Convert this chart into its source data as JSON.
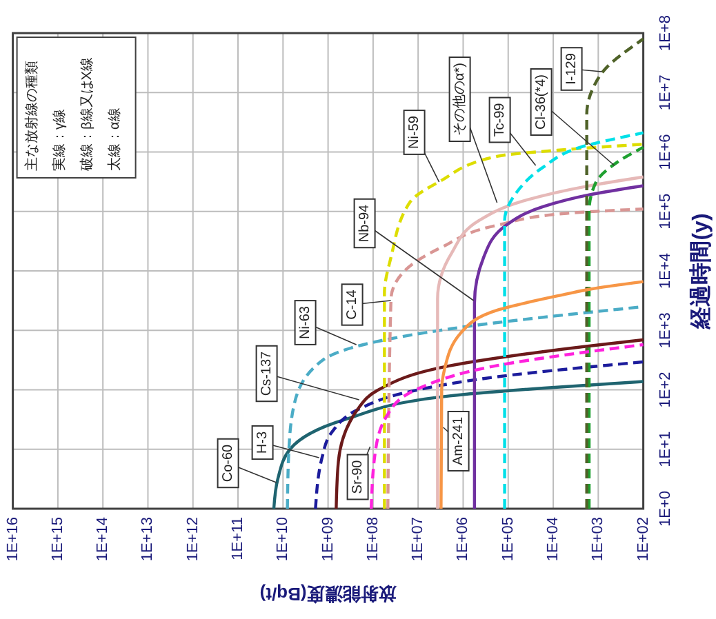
{
  "chart_data": {
    "type": "line",
    "xlabel": "放射能濃度(Bq/t)",
    "ylabel": "経過時間(y)",
    "log": "xy",
    "grid": true,
    "xlim": [
      1e+16,
      100
    ],
    "xticks": [
      {
        "value": 1e+16,
        "label": "1E+16"
      },
      {
        "value": 1000000000000000.0,
        "label": "1E+15"
      },
      {
        "value": 100000000000000.0,
        "label": "1E+14"
      },
      {
        "value": 10000000000000.0,
        "label": "1E+13"
      },
      {
        "value": 1000000000000.0,
        "label": "1E+12"
      },
      {
        "value": 100000000000.0,
        "label": "1E+11"
      },
      {
        "value": 10000000000.0,
        "label": "1E+10"
      },
      {
        "value": 1000000000.0,
        "label": "1E+09"
      },
      {
        "value": 100000000.0,
        "label": "1E+08"
      },
      {
        "value": 10000000.0,
        "label": "1E+07"
      },
      {
        "value": 1000000.0,
        "label": "1E+06"
      },
      {
        "value": 100000.0,
        "label": "1E+05"
      },
      {
        "value": 10000.0,
        "label": "1E+04"
      },
      {
        "value": 1000,
        "label": "1E+03"
      },
      {
        "value": 100,
        "label": "1E+02"
      }
    ],
    "ylim": [
      1,
      100000000
    ],
    "yticks": [
      {
        "value": 1,
        "label": "1E+0"
      },
      {
        "value": 10,
        "label": "1E+1"
      },
      {
        "value": 100,
        "label": "1E+2"
      },
      {
        "value": 1000,
        "label": "1E+3"
      },
      {
        "value": 10000,
        "label": "1E+4"
      },
      {
        "value": 100000,
        "label": "1E+5"
      },
      {
        "value": 1000000,
        "label": "1E+6"
      },
      {
        "value": 10000000,
        "label": "1E+7"
      },
      {
        "value": 100000000,
        "label": "1E+8"
      }
    ],
    "annotations": [
      "主な放射線の種類",
      "実線：γ線",
      "破線：β線又はX線",
      "太線：α線"
    ],
    "series": [
      {
        "name": "Co-60",
        "color": "#1f6470",
        "line_style": "solid",
        "values": [
          1,
          3.2,
          10,
          32,
          79,
          107,
          138
        ],
        "x": [
          16000000000.0,
          13000000000.0,
          7000000000.0,
          400000000.0,
          2000000.0,
          16000.0,
          100
        ]
      },
      {
        "name": "H-3",
        "color": "#1c1c9c",
        "line_style": "dashed",
        "values": [
          1,
          7.4,
          20,
          48,
          89,
          166,
          295
        ],
        "x": [
          1900000000.0,
          1350000000.0,
          800000000.0,
          200000000.0,
          20000000.0,
          170000.0,
          100
        ]
      },
      {
        "name": "Cs-137",
        "color": "#6b1a1a",
        "line_style": "solid",
        "values": [
          1,
          6.2,
          52,
          98,
          257,
          437,
          692
        ],
        "x": [
          660000000.0,
          590000000.0,
          200000000.0,
          80000000.0,
          1800000.0,
          17000.0,
          100
        ]
      },
      {
        "name": "Ni-63",
        "color": "#4bacc6",
        "line_style": "dashed",
        "values": [
          1,
          10,
          62,
          310,
          525,
          1070,
          2500
        ],
        "x": [
          8000000000.0,
          7400000000.0,
          5500000000.0,
          1350000000.0,
          260000000.0,
          1800000.0,
          100
        ]
      },
      {
        "name": "C-14",
        "color": "#d99694",
        "line_style": "dashed",
        "values": [
          1,
          3400,
          10000,
          25000,
          59000,
          93000,
          110000
        ],
        "x": [
          47000000.0,
          40000000.0,
          20000000.0,
          3000000.0,
          170000.0,
          5000,
          100
        ]
      },
      {
        "name": "Nb-94",
        "color": "#7030a0",
        "line_style": "solid",
        "values": [
          1,
          2900,
          17000,
          59000,
          120000,
          190000,
          270000
        ],
        "x": [
          560000.0,
          560000.0,
          350000.0,
          110000.0,
          17000.0,
          1600,
          100
        ]
      },
      {
        "name": "Ni-59",
        "color": "#dddd00",
        "line_style": "dashed",
        "values": [
          1,
          4200,
          17000,
          145000,
          320000,
          850000,
          1100000,
          1350000
        ],
        "x": [
          56000000.0,
          56000000.0,
          40000000.0,
          15000000.0,
          3300000.0,
          170000.0,
          5000,
          100
        ]
      },
      {
        "name": "その他のα*)",
        "color": "#e6b9b8",
        "line_style": "solid",
        "values": [
          1,
          3400,
          20000,
          70000,
          145000,
          270000,
          380000
        ],
        "x": [
          3700000.0,
          3700000.0,
          1800000.0,
          450000.0,
          54000.0,
          1600,
          100
        ]
      },
      {
        "name": "Tc-99",
        "color": "#00e0e8",
        "line_style": "dashed",
        "values": [
          1,
          70000,
          200000,
          550000,
          1200000,
          2100000
        ],
        "x": [
          120000.0,
          120000.0,
          68000.0,
          17000.0,
          2500,
          100
        ]
      },
      {
        "name": "Cl-36(*4)",
        "color": "#1fa030",
        "line_style": "dashed",
        "values": [
          1,
          100000,
          300000,
          700000,
          1200000
        ],
        "x": [
          1600,
          1600,
          1150,
          350,
          100
        ]
      },
      {
        "name": "I-129",
        "color": "#4f6228",
        "line_style": "dashed",
        "values": [
          1,
          4300000,
          12000000,
          25000000,
          68000000,
          80000000
        ],
        "x": [
          1800,
          1800,
          1300,
          700,
          135,
          100
        ]
      },
      {
        "name": "Am-241",
        "color": "#f79646",
        "line_style": "solid",
        "values": [
          1,
          100,
          220,
          890,
          2200,
          4100,
          4900,
          6600
        ],
        "x": [
          3100000.0,
          3000000.0,
          2600000.0,
          1150000.0,
          170000.0,
          5000,
          1600,
          100
        ]
      },
      {
        "name": "Sr-90",
        "color": "#ff22dd",
        "line_style": "dashed",
        "values": [
          1,
          8.7,
          36,
          98,
          257,
          575
        ],
        "x": [
          110000000.0,
          90000000.0,
          50000000.0,
          12000000.0,
          170000.0,
          100
        ]
      }
    ]
  }
}
